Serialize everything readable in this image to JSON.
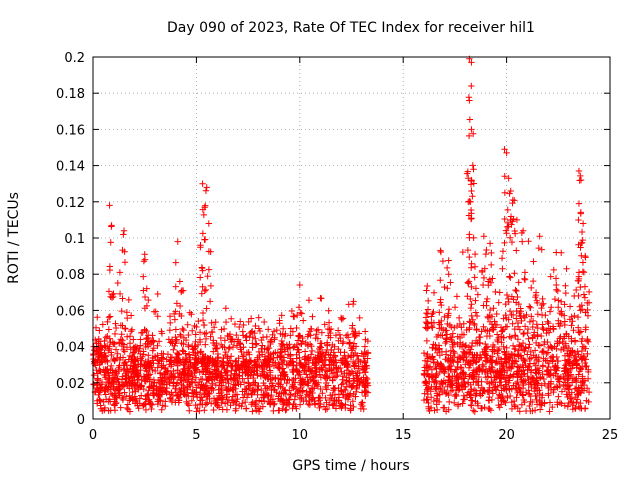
{
  "chart_data": {
    "type": "scatter",
    "title": "Day 090 of 2023, Rate Of TEC Index for receiver hil1",
    "xlabel": "GPS time / hours",
    "ylabel": "ROTI / TECUs",
    "xlim": [
      0,
      25
    ],
    "ylim": [
      0,
      0.2
    ],
    "xticks": [
      0,
      5,
      10,
      15,
      20,
      25
    ],
    "xtick_labels": [
      "0",
      "5",
      "10",
      "15",
      "20",
      "25"
    ],
    "yticks": [
      0,
      0.02,
      0.04,
      0.06,
      0.08,
      0.1,
      0.12,
      0.14,
      0.16,
      0.18,
      0.2
    ],
    "ytick_labels": [
      "0",
      "0.02",
      "0.04",
      "0.06",
      "0.08",
      "0.1",
      "0.12",
      "0.14",
      "0.16",
      "0.18",
      "0.2"
    ],
    "grid": true,
    "marker": "+",
    "color": "#ff0000",
    "series": [
      {
        "name": "ROTI",
        "segments": [
          [
            0.0,
            13.3
          ],
          [
            16.0,
            24.0
          ]
        ],
        "peaks": [
          {
            "x": 0.8,
            "y": 0.118
          },
          {
            "x": 0.9,
            "y": 0.107
          },
          {
            "x": 1.5,
            "y": 0.104
          },
          {
            "x": 1.3,
            "y": 0.081
          },
          {
            "x": 2.5,
            "y": 0.091
          },
          {
            "x": 2.6,
            "y": 0.072
          },
          {
            "x": 4.1,
            "y": 0.098
          },
          {
            "x": 4.3,
            "y": 0.071
          },
          {
            "x": 5.3,
            "y": 0.13
          },
          {
            "x": 5.5,
            "y": 0.128
          },
          {
            "x": 5.4,
            "y": 0.117
          },
          {
            "x": 5.6,
            "y": 0.108
          },
          {
            "x": 5.2,
            "y": 0.096
          },
          {
            "x": 10.0,
            "y": 0.074
          },
          {
            "x": 12.6,
            "y": 0.065
          },
          {
            "x": 16.8,
            "y": 0.093
          },
          {
            "x": 17.2,
            "y": 0.08
          },
          {
            "x": 18.2,
            "y": 0.199
          },
          {
            "x": 18.3,
            "y": 0.197
          },
          {
            "x": 18.2,
            "y": 0.176
          },
          {
            "x": 18.3,
            "y": 0.16
          },
          {
            "x": 18.4,
            "y": 0.138
          },
          {
            "x": 18.3,
            "y": 0.132
          },
          {
            "x": 18.2,
            "y": 0.102
          },
          {
            "x": 18.9,
            "y": 0.101
          },
          {
            "x": 19.2,
            "y": 0.097
          },
          {
            "x": 19.9,
            "y": 0.149
          },
          {
            "x": 20.0,
            "y": 0.147
          },
          {
            "x": 20.1,
            "y": 0.133
          },
          {
            "x": 20.2,
            "y": 0.126
          },
          {
            "x": 20.3,
            "y": 0.121
          },
          {
            "x": 20.5,
            "y": 0.11
          },
          {
            "x": 20.8,
            "y": 0.104
          },
          {
            "x": 21.6,
            "y": 0.101
          },
          {
            "x": 21.3,
            "y": 0.087
          },
          {
            "x": 22.4,
            "y": 0.092
          },
          {
            "x": 22.9,
            "y": 0.083
          },
          {
            "x": 23.5,
            "y": 0.137
          },
          {
            "x": 23.6,
            "y": 0.132
          },
          {
            "x": 23.5,
            "y": 0.119
          },
          {
            "x": 23.7,
            "y": 0.108
          },
          {
            "x": 23.8,
            "y": 0.09
          }
        ]
      }
    ]
  }
}
